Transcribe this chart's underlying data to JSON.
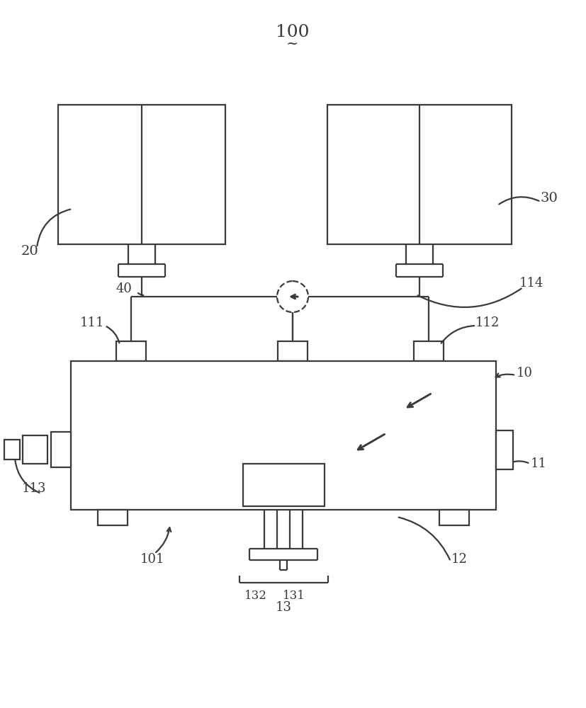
{
  "bg_color": "#ffffff",
  "line_color": "#3a3a3a",
  "lw": 1.6,
  "title_label": "100",
  "label_20": "20",
  "label_30": "30",
  "label_40": "40",
  "label_10": "10",
  "label_11": "11",
  "label_12": "12",
  "label_13": "13",
  "label_101": "101",
  "label_111": "111",
  "label_112": "112",
  "label_113": "113",
  "label_114": "114",
  "label_131": "131",
  "label_132": "132",
  "tilde": "~"
}
